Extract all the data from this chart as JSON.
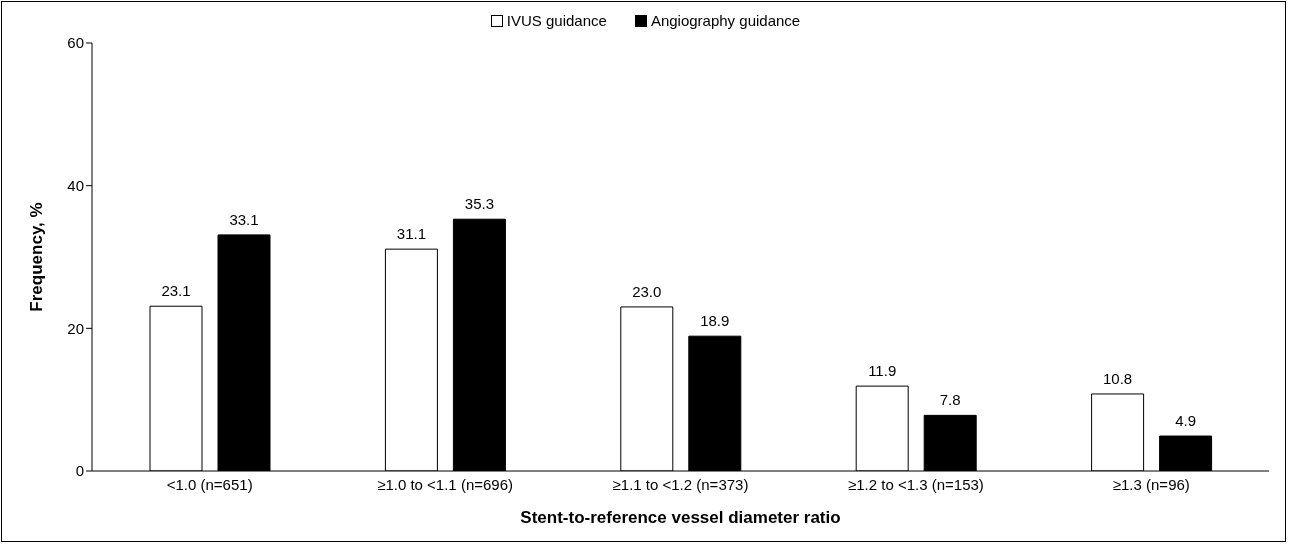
{
  "chart_data": {
    "type": "bar",
    "xlabel": "Stent-to-reference vessel diameter ratio",
    "ylabel": "Frequency, %",
    "categories": [
      "<1.0 (n=651)",
      "≥1.0 to <1.1 (n=696)",
      "≥1.1 to <1.2 (n=373)",
      "≥1.2 to <1.3 (n=153)",
      "≥1.3 (n=96)"
    ],
    "series": [
      {
        "name": "IVUS guidance",
        "color": "#ffffff",
        "values": [
          23.1,
          31.1,
          23.0,
          11.9,
          10.8
        ],
        "value_labels": [
          "23.1",
          "31.1",
          "23.0",
          "11.9",
          "10.8"
        ]
      },
      {
        "name": "Angiography guidance",
        "color": "#000000",
        "values": [
          33.1,
          35.3,
          18.9,
          7.8,
          4.9
        ],
        "value_labels": [
          "33.1",
          "35.3",
          "18.9",
          "7.8",
          "4.9"
        ]
      }
    ],
    "ylim": [
      0,
      60
    ],
    "yticks": [
      0,
      20,
      40,
      60
    ],
    "grid": false,
    "legend": "top"
  }
}
